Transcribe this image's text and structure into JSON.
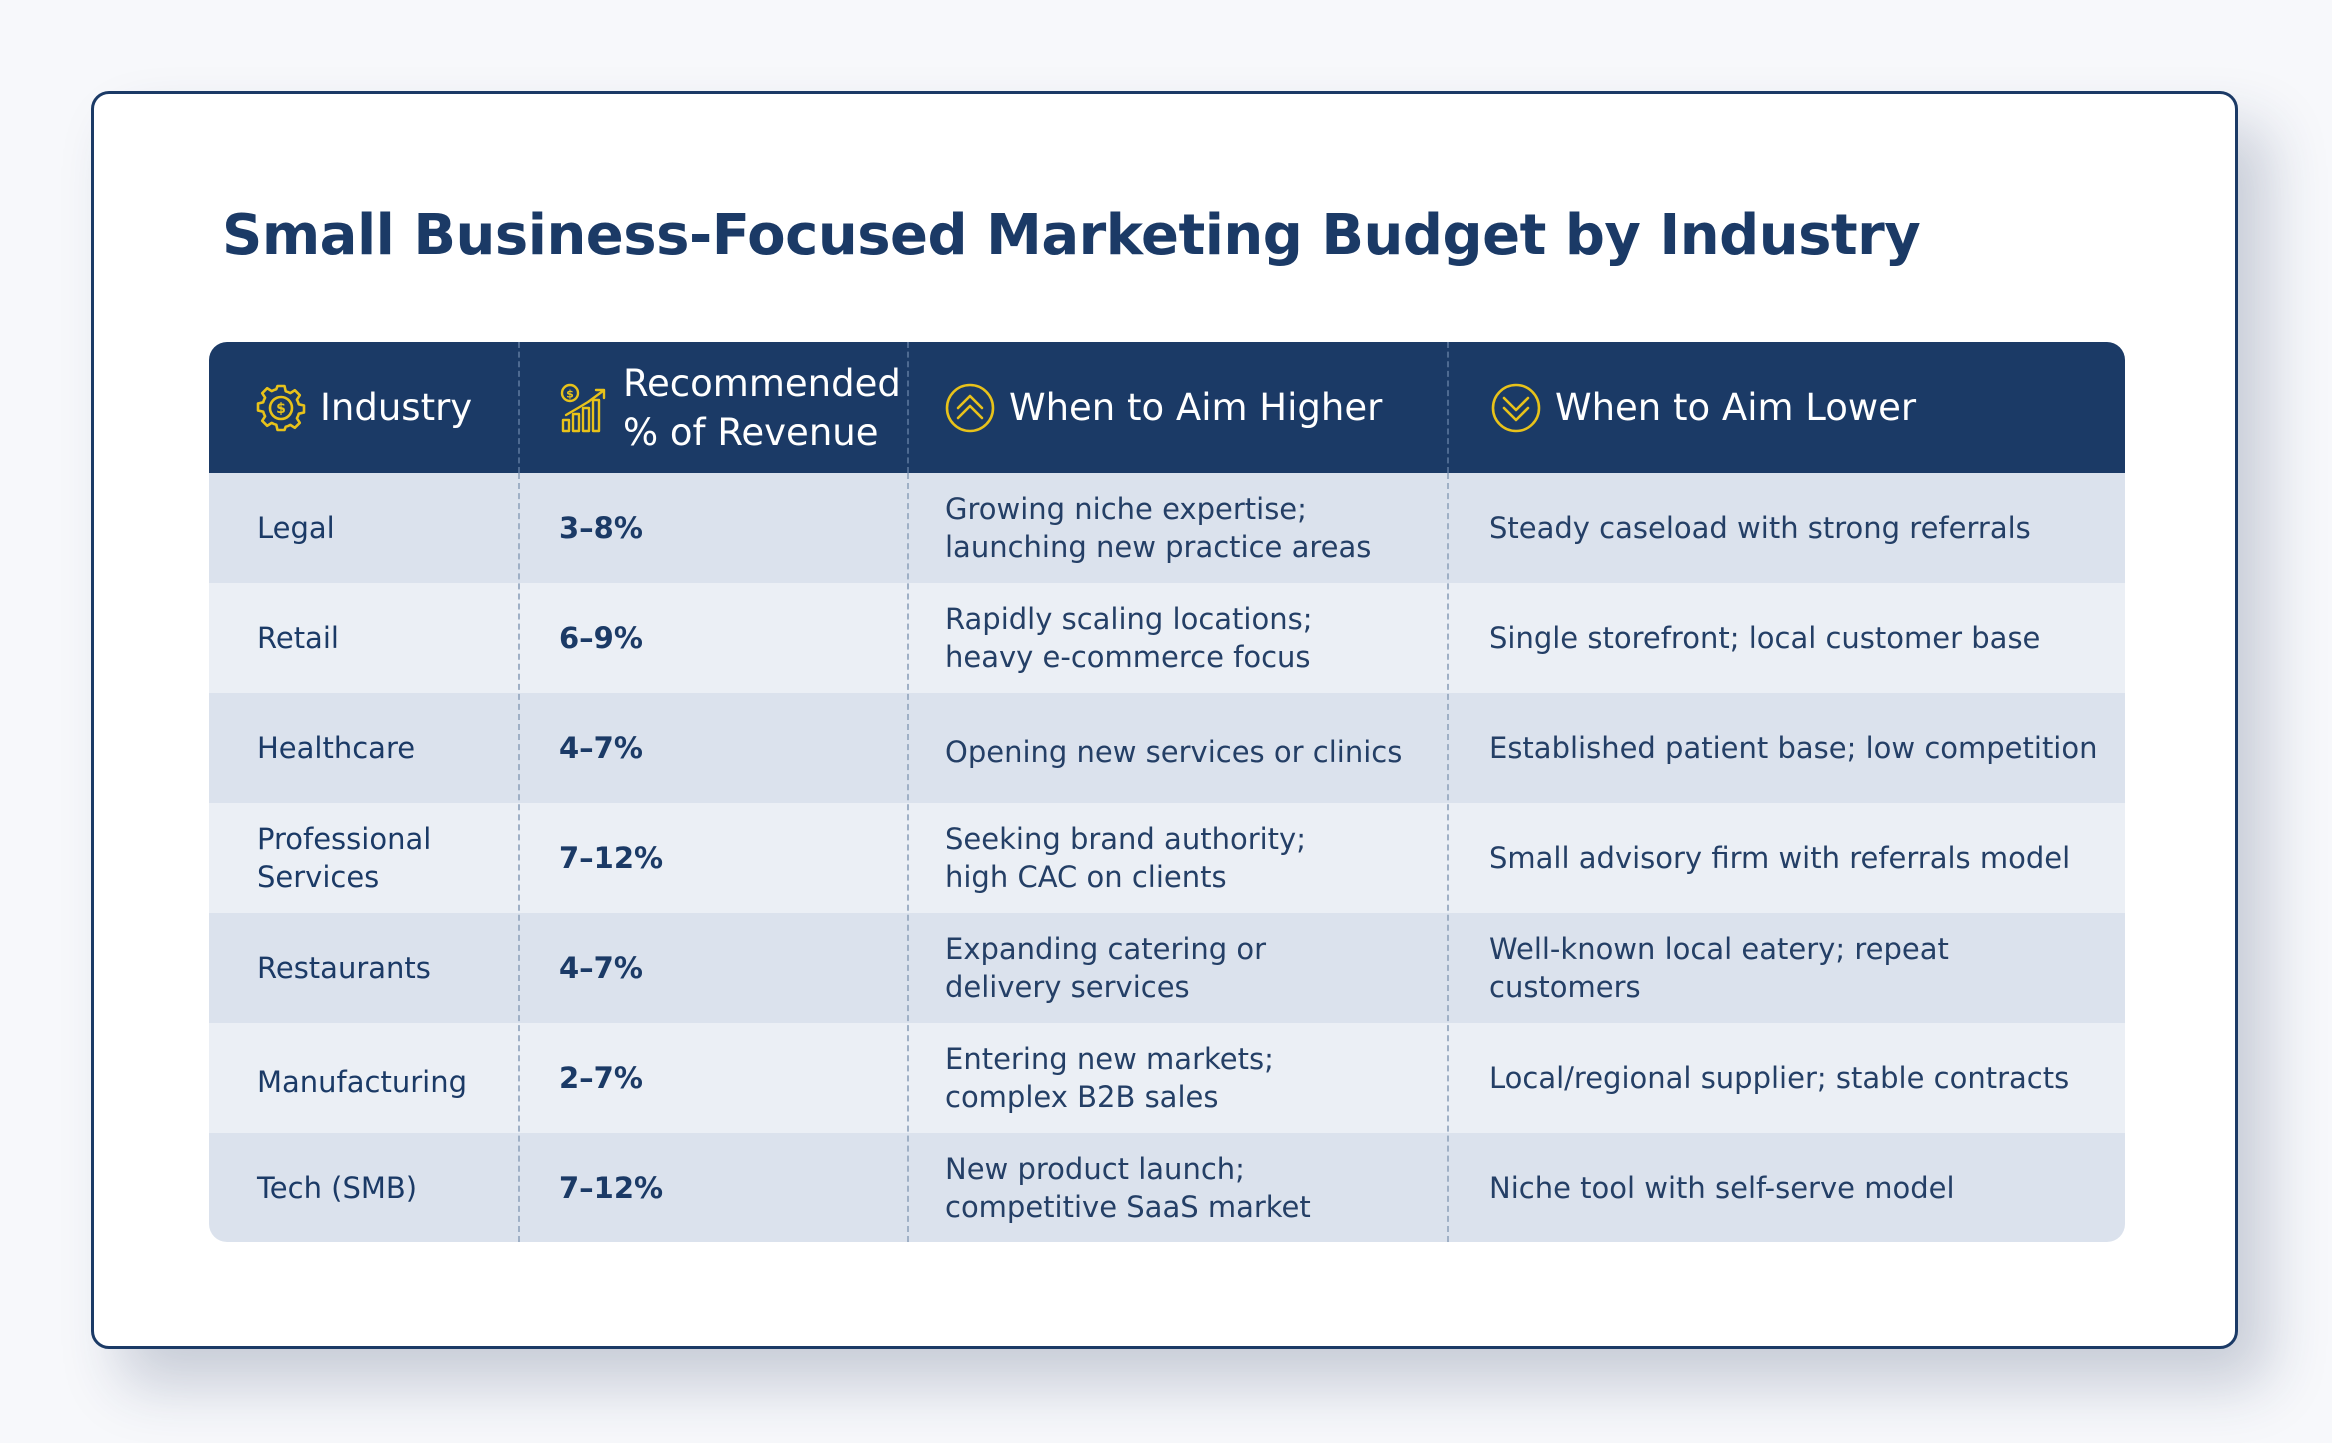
{
  "title": "Small Business-Focused Marketing Budget by Industry",
  "colors": {
    "header_bg": "#1b3a66",
    "icon_gold": "#e8c21a",
    "row_odd": "#dbe2ed",
    "row_even": "#ebeff5",
    "text": "#1b3a66"
  },
  "headers": [
    {
      "label": "Industry",
      "icon": "gear-icon"
    },
    {
      "label": "Recommended\n% of Revenue",
      "icon": "revenue-chart-icon"
    },
    {
      "label": "When to Aim Higher",
      "icon": "chevron-up-icon"
    },
    {
      "label": "When to Aim Lower",
      "icon": "chevron-down-icon"
    }
  ],
  "rows": [
    {
      "industry": "Legal",
      "percent": "3–8%",
      "higher": "Growing niche expertise;\nlaunching new practice areas",
      "lower": "Steady caseload with strong referrals"
    },
    {
      "industry": "Retail",
      "percent": "6–9%",
      "higher": "Rapidly scaling locations;\nheavy e-commerce focus",
      "lower": "Single storefront; local customer base"
    },
    {
      "industry": "Healthcare",
      "percent": "4–7%",
      "higher": "Opening new services or clinics",
      "lower": "Established patient base; low competition"
    },
    {
      "industry": "Professional\nServices",
      "percent": "7–12%",
      "higher": "Seeking brand authority;\nhigh CAC on clients",
      "lower": "Small advisory firm with referrals model"
    },
    {
      "industry": "Restaurants",
      "percent": "4–7%",
      "higher": "Expanding catering or\ndelivery services",
      "lower": "Well-known local eatery; repeat customers"
    },
    {
      "industry": "Manufacturing",
      "percent": "2–7%",
      "higher": "Entering new markets;\ncomplex B2B sales",
      "lower": "Local/regional supplier; stable contracts"
    },
    {
      "industry": "Tech (SMB)",
      "percent": "7–12%",
      "higher": "New product launch;\ncompetitive SaaS market",
      "lower": "Niche tool with self-serve model"
    }
  ]
}
